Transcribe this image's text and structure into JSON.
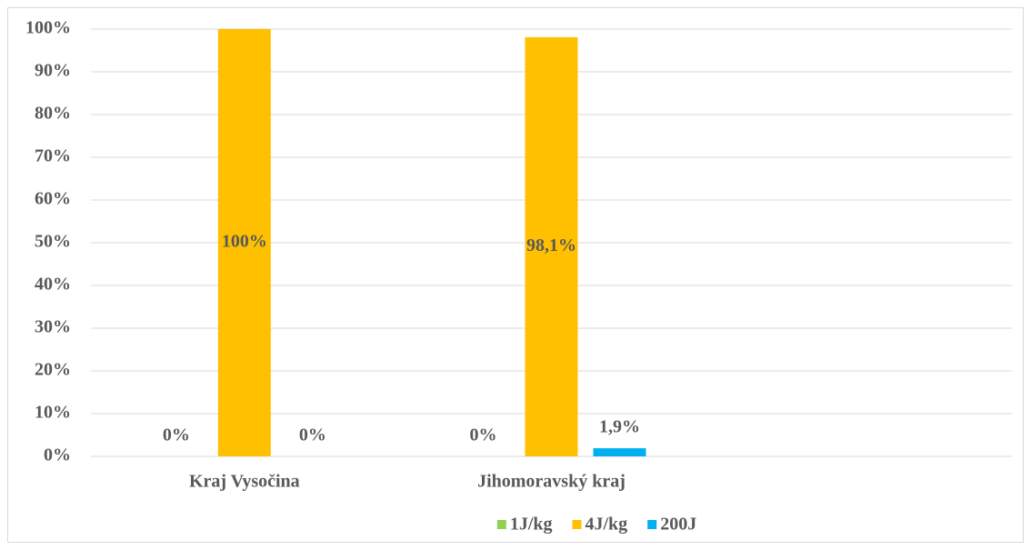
{
  "chart_data": {
    "type": "bar",
    "categories": [
      "Kraj Vysočina",
      "Jihomoravský kraj",
      null
    ],
    "series": [
      {
        "name": "1J/kg",
        "color": "#92d050",
        "values": [
          0,
          0,
          null
        ],
        "value_labels": [
          "0%",
          "0%",
          null
        ]
      },
      {
        "name": "4J/kg",
        "color": "#ffc000",
        "values": [
          100,
          98.1,
          null
        ],
        "value_labels": [
          "100%",
          "98,1%",
          null
        ]
      },
      {
        "name": "200J",
        "color": "#00b0f0",
        "values": [
          0,
          1.9,
          null
        ],
        "value_labels": [
          "0%",
          "1,9%",
          null
        ]
      }
    ],
    "ylim": [
      0,
      100
    ],
    "yticks": [
      {
        "value": 0,
        "label": "0%"
      },
      {
        "value": 10,
        "label": "10%"
      },
      {
        "value": 20,
        "label": "20%"
      },
      {
        "value": 30,
        "label": "30%"
      },
      {
        "value": 40,
        "label": "40%"
      },
      {
        "value": 50,
        "label": "50%"
      },
      {
        "value": 60,
        "label": "60%"
      },
      {
        "value": 70,
        "label": "70%"
      },
      {
        "value": 80,
        "label": "80%"
      },
      {
        "value": 90,
        "label": "90%"
      },
      {
        "value": 100,
        "label": "100%"
      }
    ],
    "grid": true,
    "legend": "bottom"
  }
}
